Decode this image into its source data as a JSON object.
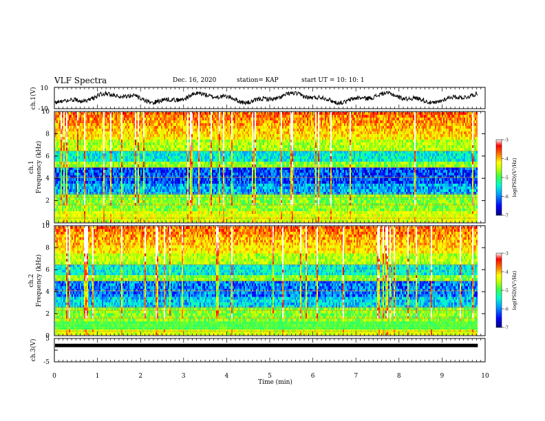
{
  "header": {
    "title": "VLF Spectra",
    "date": "Dec. 16, 2020",
    "station": "station= KAP",
    "start": "start UT =  10: 10: 1"
  },
  "chart_data": [
    {
      "id": "ch1-waveform",
      "type": "line",
      "ylabel": "ch.1(V)",
      "ylim": [
        -10,
        10
      ],
      "yticks": [
        -10,
        10
      ],
      "xlim": [
        0,
        10
      ],
      "description_values": "noisy voltage trace oscillating roughly between -5 and 5 V"
    },
    {
      "id": "ch1-spectrogram",
      "type": "heatmap",
      "ylabel": "ch.1",
      "ylabel2": "Frequency (kHz)",
      "ylim": [
        0,
        10
      ],
      "yticks": [
        0,
        2,
        4,
        6,
        8,
        10
      ],
      "xlim": [
        0,
        9.83
      ],
      "colorbar": {
        "label": "log(PSD)(V²/Hz)",
        "range": [
          -7,
          -3
        ],
        "ticks": [
          -3,
          -4,
          -5,
          -6,
          -7
        ]
      }
    },
    {
      "id": "ch2-spectrogram",
      "type": "heatmap",
      "ylabel": "ch.2",
      "ylabel2": "Frequency (kHz)",
      "ylim": [
        0,
        10
      ],
      "yticks": [
        0,
        2,
        4,
        6,
        8,
        10
      ],
      "xlim": [
        0,
        9.83
      ],
      "colorbar": {
        "label": "log(PSD)(V²/Hz)",
        "range": [
          -7,
          -3
        ],
        "ticks": [
          -3,
          -4,
          -5,
          -6,
          -7
        ]
      }
    },
    {
      "id": "ch3-waveform",
      "type": "line",
      "ylabel": "ch.3(V)",
      "ylim": [
        -5,
        5
      ],
      "yticks": [
        -5,
        0,
        5
      ],
      "ytick_labels": [
        "-5",
        "",
        "5"
      ],
      "xlim": [
        0,
        10
      ],
      "baseline_value": 2
    }
  ],
  "xaxis": {
    "label": "Time (min)",
    "range": [
      0,
      10
    ],
    "ticks": [
      0,
      1,
      2,
      3,
      4,
      5,
      6,
      7,
      8,
      9,
      10
    ]
  },
  "colors": {
    "trace": "#000000",
    "colormap": [
      "#000080",
      "#0000ff",
      "#00a0ff",
      "#00ffd0",
      "#40ff40",
      "#c8ff00",
      "#ffff00",
      "#ff8000",
      "#ff0000",
      "#ffffff"
    ]
  }
}
